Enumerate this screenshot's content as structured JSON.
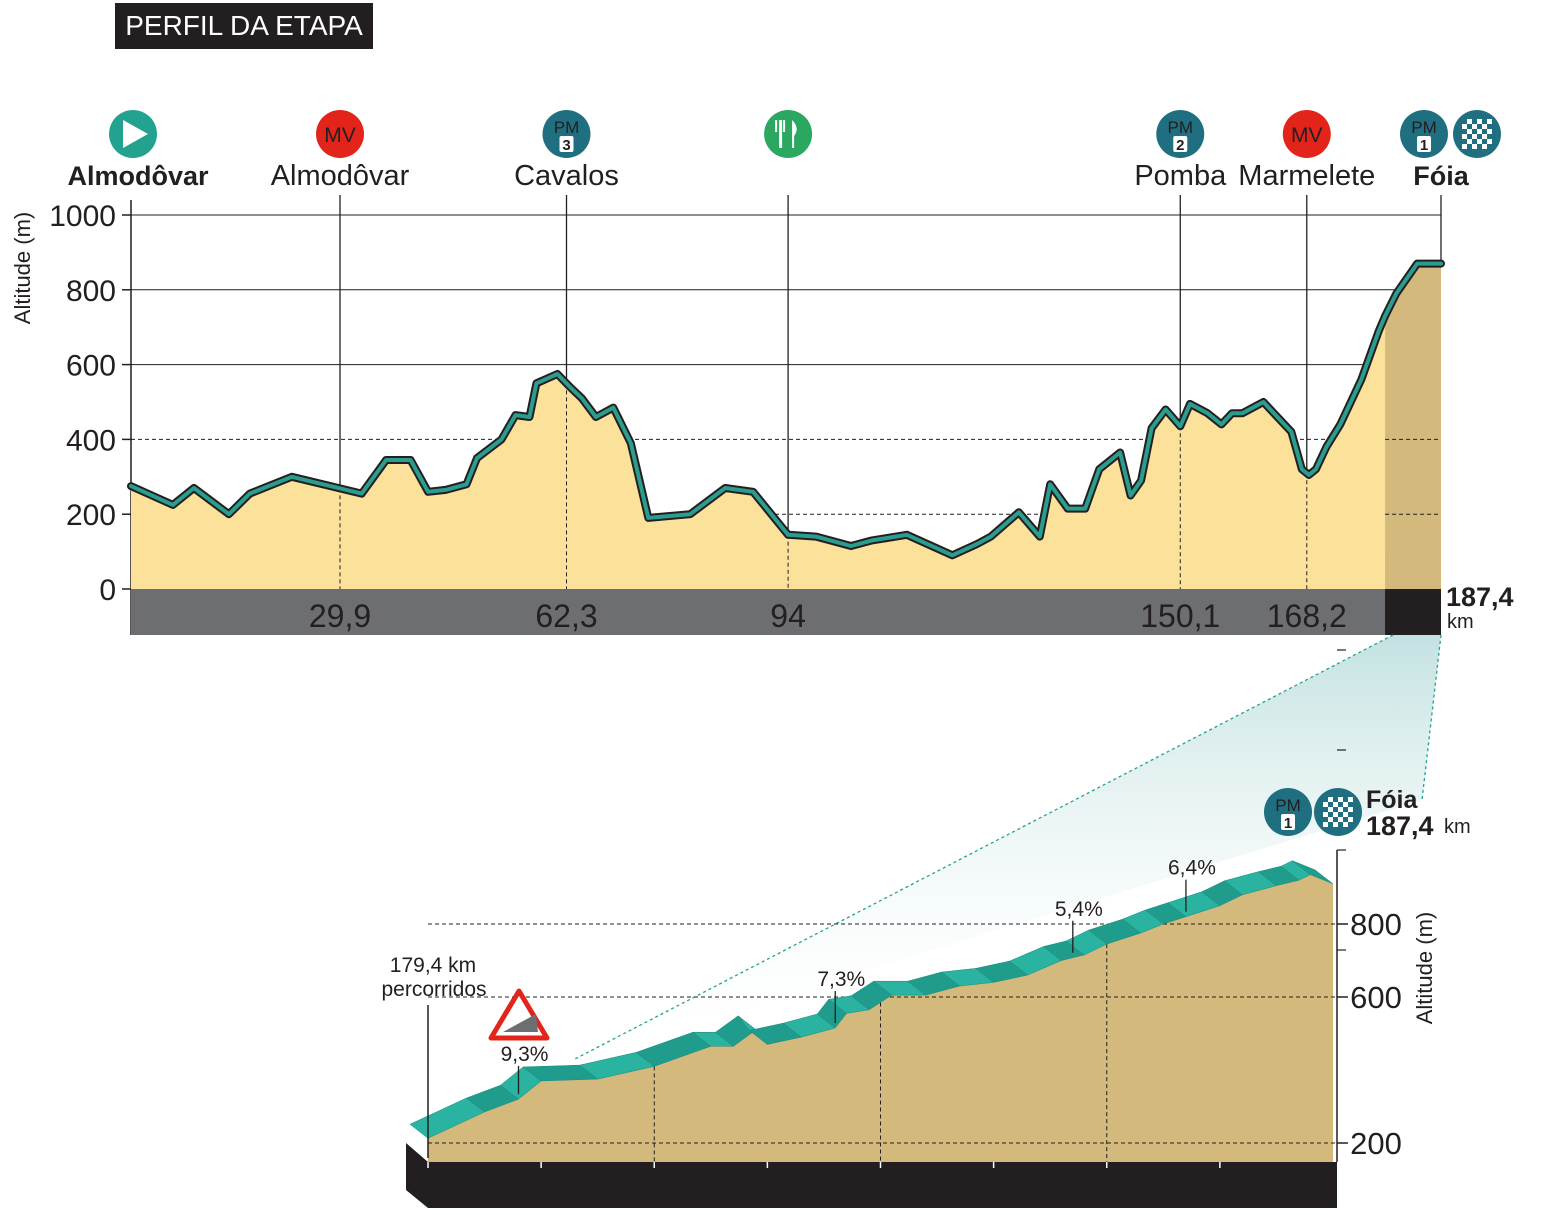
{
  "page_title": "PERFIL DA ETAPA",
  "chart_data": [
    {
      "type": "area",
      "ylabel": "Altitude (m)",
      "ylim": [
        0,
        1000
      ],
      "yticks": [
        0,
        200,
        400,
        600,
        800,
        1000
      ],
      "xlim": [
        0,
        187.4
      ],
      "grid": "horizontal dashed at 200 and 400, solid elsewhere",
      "finish_km_label": "187,4",
      "finish_km_unit": "km",
      "markers": [
        {
          "km": 0,
          "km_label": "",
          "name": "Almodôvar",
          "badge": "start",
          "bold": true
        },
        {
          "km": 29.9,
          "km_label": "29,9",
          "name": "Almodôvar",
          "badge": "MV",
          "bold": false
        },
        {
          "km": 62.3,
          "km_label": "62,3",
          "name": "Cavalos",
          "badge": "PM",
          "badge_num": "3",
          "bold": false
        },
        {
          "km": 94,
          "km_label": "94",
          "name": "",
          "badge": "feed",
          "bold": false
        },
        {
          "km": 150.1,
          "km_label": "150,1",
          "name": "Pomba",
          "badge": "PM",
          "badge_num": "2",
          "bold": false
        },
        {
          "km": 168.2,
          "km_label": "168,2",
          "name": "Marmelete",
          "badge": "MV",
          "bold": false
        },
        {
          "km": 187.4,
          "km_label": "",
          "name": "Fóia",
          "badge": "PM-finish",
          "badge_num": "1",
          "bold": true
        }
      ],
      "x": [
        0,
        6,
        9,
        14,
        17,
        23,
        33,
        36.5,
        40,
        42.5,
        45,
        48,
        49.5,
        53,
        55,
        57,
        58,
        61,
        62.8,
        64.5,
        66.5,
        69,
        71.5,
        74,
        80,
        85,
        89,
        94,
        98,
        103,
        106,
        111,
        117.5,
        121,
        123,
        127,
        130,
        131.5,
        134,
        136.5,
        138.5,
        141.5,
        143,
        144.5,
        146,
        148,
        150.1,
        151.5,
        154,
        156,
        157.5,
        159,
        161,
        162,
        164,
        166,
        167.5,
        168.5,
        169.5,
        171,
        173,
        176,
        178.5,
        179.4,
        181,
        184,
        187.4
      ],
      "y": [
        275,
        225,
        270,
        200,
        255,
        300,
        255,
        345,
        345,
        260,
        265,
        280,
        350,
        400,
        465,
        460,
        550,
        575,
        540,
        510,
        460,
        485,
        390,
        190,
        200,
        270,
        260,
        145,
        140,
        115,
        130,
        145,
        90,
        120,
        140,
        205,
        140,
        280,
        215,
        215,
        320,
        365,
        250,
        290,
        430,
        480,
        435,
        495,
        470,
        440,
        470,
        470,
        490,
        500,
        460,
        420,
        320,
        305,
        320,
        380,
        440,
        560,
        690,
        730,
        790,
        870,
        870
      ]
    },
    {
      "type": "area",
      "title": "Fóia",
      "title_km": "187,4",
      "title_unit": "km",
      "ylabel": "Altitude (m)",
      "yticks": [
        200,
        600,
        800
      ],
      "xlabel": "km",
      "x_ticks_km_to_go": [
        "8",
        "7",
        "6",
        "5",
        "4",
        "3",
        "2",
        "1"
      ],
      "start_annotation_km": "179,4 km",
      "start_annotation_text": "percorridos",
      "steep_warning": "9,3%",
      "gradient_labels": [
        {
          "km_to_go": 7.2,
          "label": "9,3%"
        },
        {
          "km_to_go": 4.4,
          "label": "7,3%"
        },
        {
          "km_to_go": 2.3,
          "label": "5,4%"
        },
        {
          "km_to_go": 1.3,
          "label": "6,4%"
        }
      ],
      "km_to_go": [
        8,
        7.5,
        7.2,
        7,
        6.5,
        6,
        5.5,
        5.3,
        5.1,
        5,
        4.7,
        4.4,
        4.3,
        4.1,
        3.9,
        3.6,
        3.3,
        3.0,
        2.7,
        2.4,
        2.2,
        2.0,
        1.7,
        1.5,
        1.3,
        1.0,
        0.8,
        0.5,
        0.3,
        0.2,
        0
      ],
      "altitude": [
        213,
        285,
        320,
        370,
        375,
        410,
        465,
        465,
        510,
        470,
        490,
        515,
        555,
        565,
        605,
        605,
        630,
        640,
        660,
        700,
        715,
        745,
        775,
        800,
        820,
        850,
        880,
        905,
        920,
        935,
        910
      ]
    }
  ]
}
